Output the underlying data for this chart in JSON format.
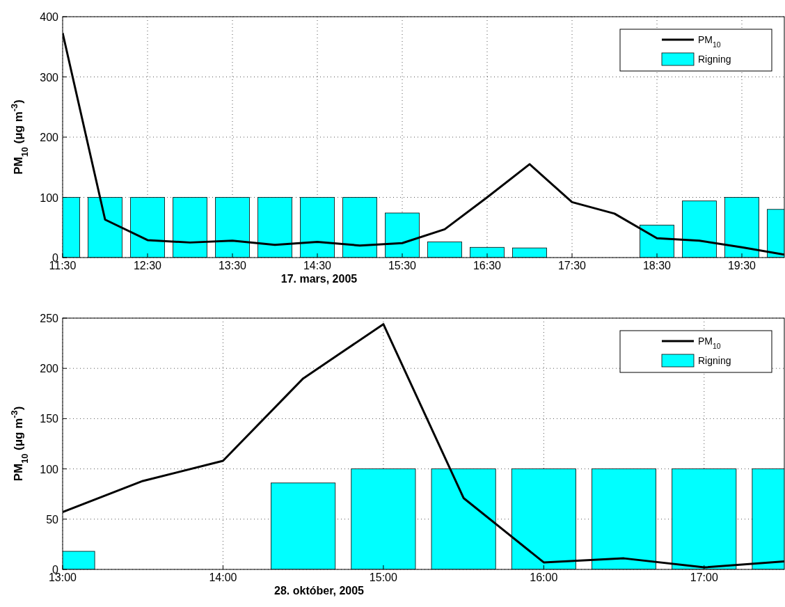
{
  "chart_data": [
    {
      "type": "bar",
      "xlabel": "17. mars, 2005",
      "ylabel": "PM$_{10}$ (μg m$^{-3}$)",
      "x": [
        11.5,
        12,
        12.5,
        13,
        13.5,
        14,
        14.5,
        15,
        15.5,
        16,
        16.5,
        17,
        17.5,
        18,
        18.5,
        19,
        19.5,
        20
      ],
      "series": [
        {
          "name": "PM$_{10}$",
          "type": "line",
          "color": "#000000",
          "values": [
            373,
            63,
            29,
            25,
            28,
            21,
            26,
            20,
            24,
            47,
            100,
            155,
            92,
            73,
            32,
            28,
            17,
            5
          ]
        },
        {
          "name": "Rigning",
          "color": "#00ffff",
          "values": [
            100,
            100,
            100,
            100,
            100,
            100,
            100,
            100,
            74,
            26,
            17,
            16,
            0,
            0,
            54,
            94,
            100,
            80
          ]
        }
      ],
      "xlim": [
        11.5,
        20
      ],
      "xticks": [
        {
          "value": 11.5,
          "label": "11:30"
        },
        {
          "value": 12.5,
          "label": "12:30"
        },
        {
          "value": 13.5,
          "label": "13:30"
        },
        {
          "value": 14.5,
          "label": "14:30"
        },
        {
          "value": 15.5,
          "label": "15:30"
        },
        {
          "value": 16.5,
          "label": "16:30"
        },
        {
          "value": 17.5,
          "label": "17:30"
        },
        {
          "value": 18.5,
          "label": "18:30"
        },
        {
          "value": 19.5,
          "label": "19:30"
        }
      ],
      "ylim": [
        0,
        400
      ],
      "yticks": [
        0,
        100,
        200,
        300,
        400
      ],
      "grid": true,
      "legend": "top right",
      "line_style": "solid",
      "marker": "none"
    },
    {
      "type": "bar",
      "xlabel": "28. október, 2005",
      "ylabel": "PM$_{10}$ (μg m$^{-3}$)",
      "x": [
        13,
        13.5,
        14,
        14.5,
        15,
        15.5,
        16,
        16.5,
        17,
        17.5
      ],
      "series": [
        {
          "name": "PM$_{10}$",
          "type": "line",
          "color": "#000000",
          "values": [
            57,
            88,
            108,
            190,
            244,
            71,
            7,
            11,
            2,
            8
          ]
        },
        {
          "name": "Rigning",
          "color": "#00ffff",
          "values": [
            18,
            0,
            0,
            86,
            100,
            100,
            100,
            100,
            100,
            100
          ]
        }
      ],
      "xlim": [
        13,
        17.5
      ],
      "xticks": [
        {
          "value": 13,
          "label": "13:00"
        },
        {
          "value": 14,
          "label": "14:00"
        },
        {
          "value": 15,
          "label": "15:00"
        },
        {
          "value": 16,
          "label": "16:00"
        },
        {
          "value": 17,
          "label": "17:00"
        }
      ],
      "ylim": [
        0,
        250
      ],
      "yticks": [
        0,
        50,
        100,
        150,
        200,
        250
      ],
      "grid": true,
      "legend": "top right",
      "line_style": "solid",
      "marker": "none"
    }
  ]
}
